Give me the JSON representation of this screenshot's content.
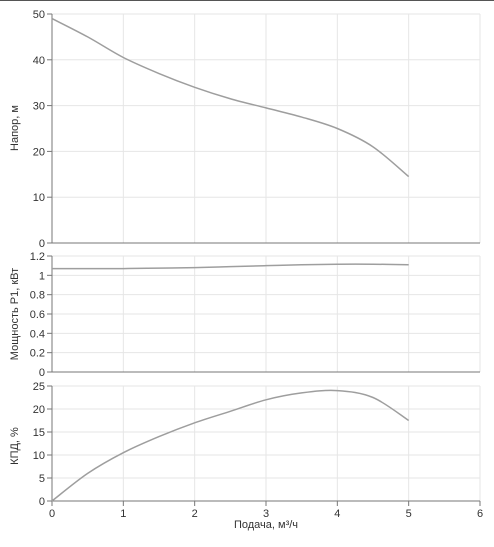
{
  "chart_data": [
    {
      "type": "line",
      "ylabel": "Напор, м",
      "xlim": [
        0,
        6
      ],
      "ylim": [
        0,
        50
      ],
      "yticks": [
        "0",
        "10",
        "20",
        "30",
        "40",
        "50"
      ],
      "grid": true,
      "series": [
        {
          "x": [
            0,
            0.5,
            1,
            1.5,
            2,
            2.5,
            3,
            3.5,
            4,
            4.5,
            5
          ],
          "y": [
            49,
            45,
            40.5,
            37,
            34,
            31.5,
            29.5,
            27.5,
            25,
            21,
            14.5
          ],
          "color": "#9e9e9e"
        }
      ]
    },
    {
      "type": "line",
      "ylabel": "Мощность Р1, кВт",
      "xlim": [
        0,
        6
      ],
      "ylim": [
        0,
        1.2
      ],
      "yticks": [
        "0",
        "0.2",
        "0.4",
        "0.6",
        "0.8",
        "1",
        "1.2"
      ],
      "grid": true,
      "series": [
        {
          "x": [
            0,
            0.5,
            1,
            1.5,
            2,
            2.5,
            3,
            3.5,
            4,
            4.5,
            5
          ],
          "y": [
            1.07,
            1.07,
            1.07,
            1.075,
            1.08,
            1.09,
            1.1,
            1.11,
            1.115,
            1.115,
            1.11
          ],
          "color": "#9e9e9e"
        }
      ]
    },
    {
      "type": "line",
      "ylabel": "КПД, %",
      "xlabel": "Подача, м³/ч",
      "xlim": [
        0,
        6
      ],
      "ylim": [
        0,
        25
      ],
      "xticks": [
        "0",
        "1",
        "2",
        "3",
        "4",
        "5",
        "6"
      ],
      "yticks": [
        "0",
        "5",
        "10",
        "15",
        "20",
        "25"
      ],
      "grid": true,
      "series": [
        {
          "x": [
            0,
            0.5,
            1,
            1.5,
            2,
            2.5,
            3,
            3.5,
            4,
            4.5,
            5
          ],
          "y": [
            0,
            6,
            10.5,
            14,
            17,
            19.5,
            22,
            23.5,
            24,
            22.5,
            17.5
          ],
          "color": "#9e9e9e"
        }
      ]
    }
  ]
}
